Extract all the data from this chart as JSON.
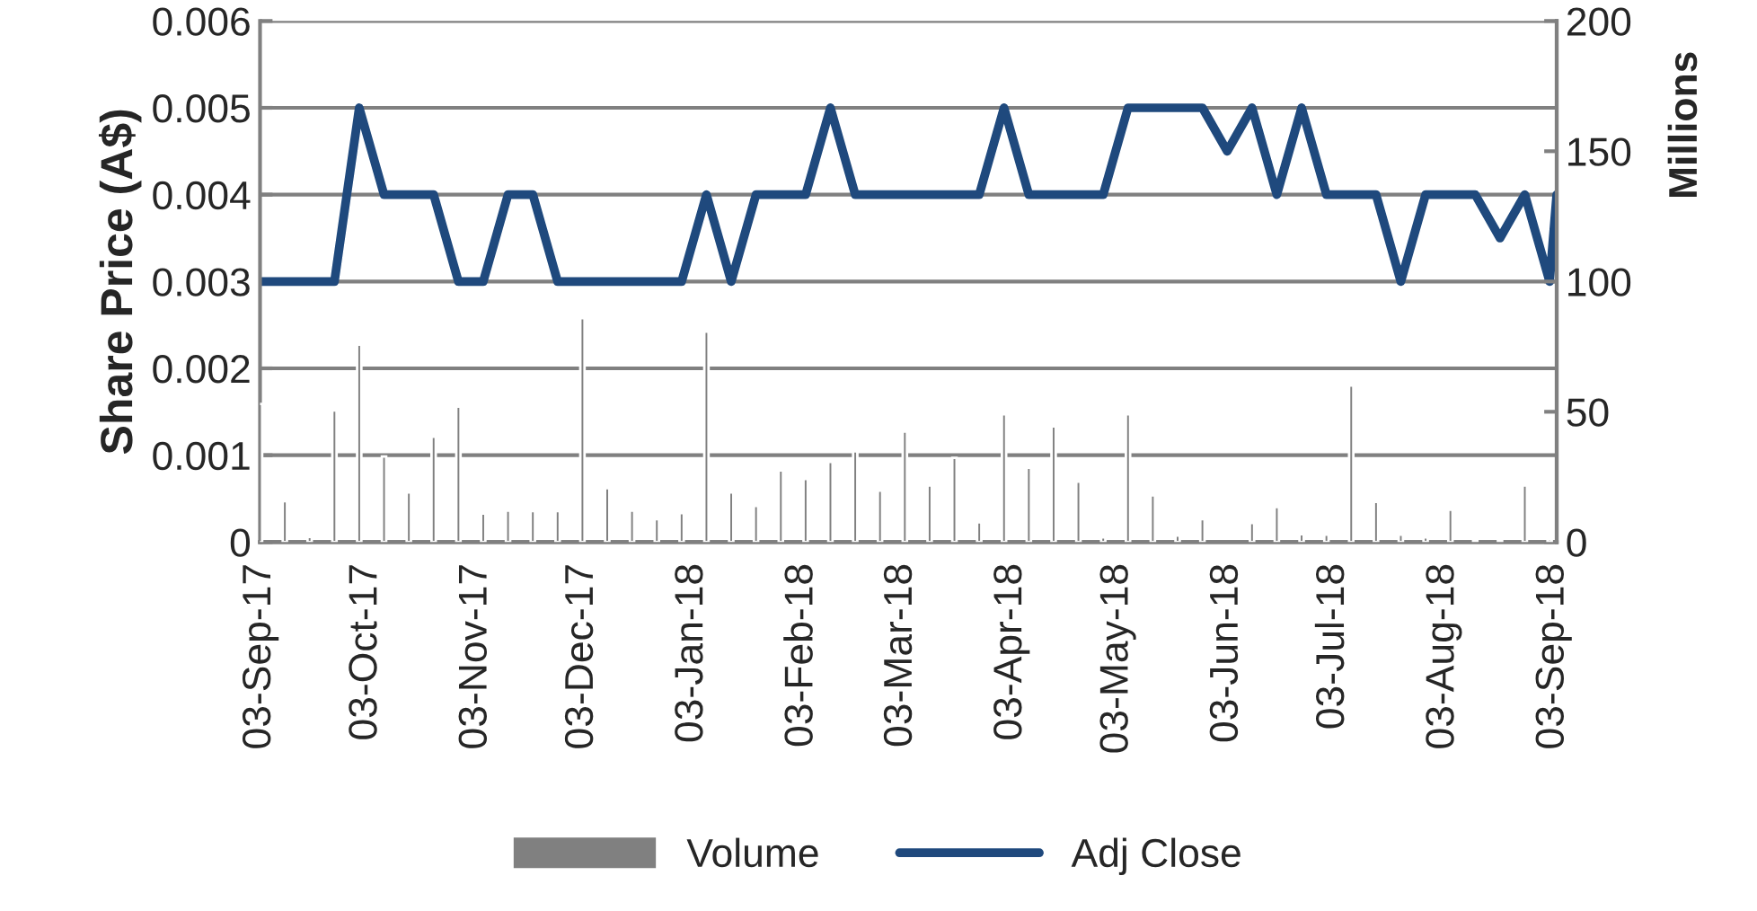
{
  "chart_data": {
    "type": "line",
    "ylabel": "Share Price (A$)",
    "y2label": "Millions",
    "xlim": [
      "2017-09-03",
      "2018-09-04"
    ],
    "xticks": [
      {
        "value": "2017-09-03",
        "label": "03-Sep-17"
      },
      {
        "value": "2017-10-03",
        "label": "03-Oct-17"
      },
      {
        "value": "2017-11-03",
        "label": "03-Nov-17"
      },
      {
        "value": "2017-12-03",
        "label": "03-Dec-17"
      },
      {
        "value": "2018-01-03",
        "label": "03-Jan-18"
      },
      {
        "value": "2018-02-03",
        "label": "03-Feb-18"
      },
      {
        "value": "2018-03-03",
        "label": "03-Mar-18"
      },
      {
        "value": "2018-04-03",
        "label": "03-Apr-18"
      },
      {
        "value": "2018-05-03",
        "label": "03-May-18"
      },
      {
        "value": "2018-06-03",
        "label": "03-Jun-18"
      },
      {
        "value": "2018-07-03",
        "label": "03-Jul-18"
      },
      {
        "value": "2018-08-03",
        "label": "03-Aug-18"
      },
      {
        "value": "2018-09-03",
        "label": "03-Sep-18"
      }
    ],
    "ylim": [
      0,
      0.006
    ],
    "yticks": [
      0,
      0.001,
      0.002,
      0.003,
      0.004,
      0.005,
      0.006
    ],
    "y2lim": [
      0,
      200
    ],
    "y2ticks": [
      0,
      50,
      100,
      150,
      200
    ],
    "grid": "y",
    "legend": "bottom",
    "series": [
      {
        "name": "Volume",
        "type": "bar",
        "axis": "y2",
        "color": "#808080",
        "values": [
          53,
          15.7,
          2,
          50.5,
          75.8,
          32.8,
          19,
          40.4,
          52,
          10.9,
          12.1,
          11.9,
          11.9,
          85.9,
          20.7,
          12.1,
          8.8,
          11.1,
          80.8,
          19,
          13.9,
          27.5,
          24.2,
          30.8,
          34.8,
          19.7,
          42.4,
          21.7,
          32.3,
          7.6,
          49,
          28.5,
          44.4,
          23.2,
          1.8,
          49,
          17.9,
          2.5,
          8.8,
          null,
          7.3,
          13.4,
          3,
          2.8,
          60.1,
          15.4,
          2.8,
          1.8,
          12.4,
          0.8,
          0.8,
          21.7,
          1,
          null
        ]
      },
      {
        "name": "Adj Close",
        "color": "#1f497d",
        "values": [
          0.003,
          0.003,
          0.003,
          0.003,
          0.005,
          0.004,
          0.004,
          0.004,
          0.003,
          0.003,
          0.004,
          0.004,
          0.003,
          0.003,
          0.003,
          0.003,
          0.003,
          0.003,
          0.004,
          0.003,
          0.004,
          0.004,
          0.004,
          0.005,
          0.004,
          0.004,
          0.004,
          0.004,
          0.004,
          0.004,
          0.005,
          0.004,
          0.004,
          0.004,
          0.004,
          0.005,
          0.005,
          0.005,
          0.005,
          0.0045,
          0.005,
          0.004,
          0.005,
          0.004,
          0.004,
          0.004,
          0.003,
          0.004,
          0.004,
          0.004,
          0.0035,
          0.004,
          0.003,
          0.004
        ]
      }
    ],
    "x": [
      "2017-09-03",
      "2017-09-10",
      "2017-09-17",
      "2017-09-24",
      "2017-10-01",
      "2017-10-08",
      "2017-10-15",
      "2017-10-22",
      "2017-10-29",
      "2017-11-05",
      "2017-11-12",
      "2017-11-19",
      "2017-11-26",
      "2017-12-03",
      "2017-12-10",
      "2017-12-17",
      "2017-12-24",
      "2017-12-31",
      "2018-01-07",
      "2018-01-14",
      "2018-01-21",
      "2018-01-28",
      "2018-02-04",
      "2018-02-11",
      "2018-02-18",
      "2018-02-25",
      "2018-03-04",
      "2018-03-11",
      "2018-03-18",
      "2018-03-25",
      "2018-04-01",
      "2018-04-08",
      "2018-04-15",
      "2018-04-22",
      "2018-04-29",
      "2018-05-06",
      "2018-05-13",
      "2018-05-20",
      "2018-05-27",
      "2018-06-03",
      "2018-06-10",
      "2018-06-17",
      "2018-06-24",
      "2018-07-01",
      "2018-07-08",
      "2018-07-15",
      "2018-07-22",
      "2018-07-29",
      "2018-08-05",
      "2018-08-12",
      "2018-08-19",
      "2018-08-26",
      "2018-09-02",
      "2018-09-04"
    ]
  }
}
